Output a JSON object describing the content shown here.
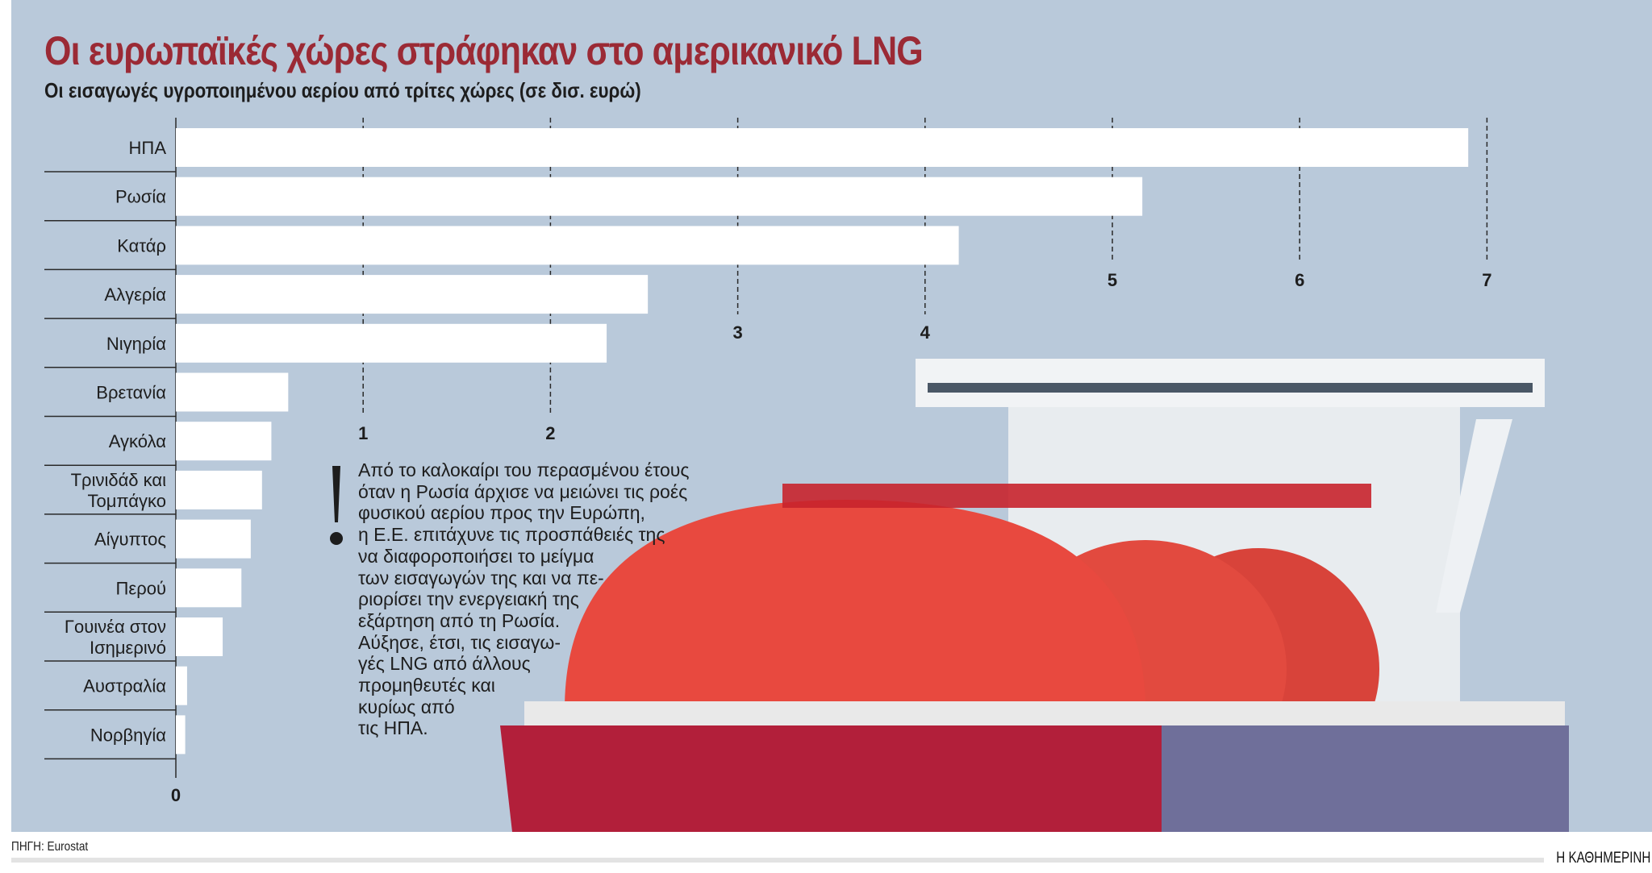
{
  "title": "Οι ευρωπαϊκές χώρες στράφηκαν στο αμερικανικό LNG",
  "subtitle": "Οι εισαγωγές υγροποιημένου αερίου από τρίτες χώρες (σε δισ. ευρώ)",
  "note": "Από το καλοκαίρι του περασμένου έτους\nόταν η Ρωσία άρχισε να μειώνει τις ροές\nφυσικού αερίου προς την Ευρώπη,\nη Ε.Ε. επιτάχυνε τις προσπάθειές της\nνα διαφοροποιήσει το μείγμα\nτων εισαγωγών της και να πε-\nριορίσει την ενεργειακή της\nεξάρτηση από τη Ρωσία.\nΑύξησε, έτσι, τις εισαγω-\nγές LNG από άλλους\nπρομηθευτές και\nκυρίως από\nτις ΗΠΑ.",
  "source": "ΠΗΓΗ: Eurostat",
  "brand": "Η ΚΑΘΗΜΕΡΙΝΗ",
  "colors": {
    "background": "#b9c9da",
    "bar": "#ffffff",
    "title": "#9b2a35",
    "ship_hull": "#b8203a",
    "ship_tanks": "#e8493f"
  },
  "chart_data": {
    "type": "bar",
    "orientation": "horizontal",
    "categories": [
      "ΗΠΑ",
      "Ρωσία",
      "Κατάρ",
      "Αλγερία",
      "Νιγηρία",
      "Βρετανία",
      "Αγκόλα",
      "Τρινιδάδ και\nΤομπάγκο",
      "Αίγυπτος",
      "Περού",
      "Γουινέα στον\nΙσημερινό",
      "Αυστραλία",
      "Νορβηγία"
    ],
    "values": [
      6.9,
      5.16,
      4.18,
      2.52,
      2.3,
      0.6,
      0.51,
      0.46,
      0.4,
      0.35,
      0.25,
      0.06,
      0.05
    ],
    "xlim": [
      0,
      7
    ],
    "xticks": [
      "0",
      "1",
      "2",
      "3",
      "4",
      "5",
      "6",
      "7"
    ],
    "title": "Οι ευρωπαϊκές χώρες στράφηκαν στο αμερικανικό LNG",
    "xlabel": "",
    "ylabel": "",
    "grid": "vertical dashed"
  }
}
